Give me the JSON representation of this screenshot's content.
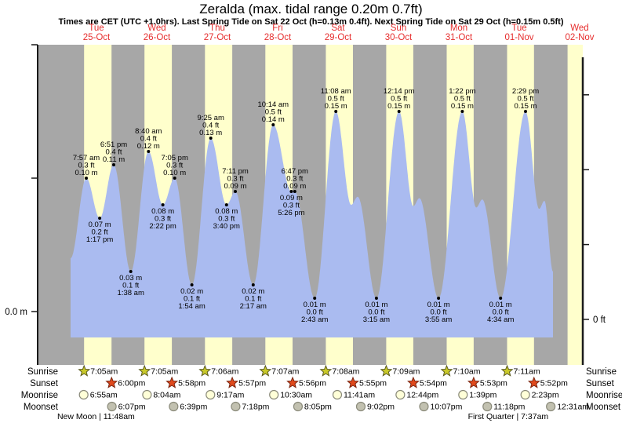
{
  "title": "Zeralda (max. tidal range 0.20m 0.7ft)",
  "subtitle": "Times are CET (UTC +1.0hrs). Last Spring Tide on Sat 22 Oct (h=0.13m 0.4ft). Next Spring Tide on Sat 29 Oct (h=0.15m 0.5ft)",
  "row_labels": {
    "sunrise": "Sunrise",
    "sunset": "Sunset",
    "moonrise": "Moonrise",
    "moonset": "Moonset"
  },
  "axis_labels": {
    "left_zero": "0.0 m",
    "right_zero": "0 ft"
  },
  "days": [
    {
      "name": "Tue",
      "date": "25-Oct"
    },
    {
      "name": "Wed",
      "date": "26-Oct"
    },
    {
      "name": "Thu",
      "date": "27-Oct"
    },
    {
      "name": "Fri",
      "date": "28-Oct"
    },
    {
      "name": "Sat",
      "date": "29-Oct"
    },
    {
      "name": "Sun",
      "date": "30-Oct"
    },
    {
      "name": "Mon",
      "date": "31-Oct"
    },
    {
      "name": "Tue",
      "date": "01-Nov"
    },
    {
      "name": "Wed",
      "date": "02-Nov"
    }
  ],
  "colors": {
    "night": "#a7a7a7",
    "day": "#ffffcc",
    "tide_fill": "#aabbf0",
    "axis": "#1a1a1a",
    "day_label": "#e62d2d",
    "annotation": "#000000",
    "sunrise_star_fill": "#c9c929",
    "sunrise_star_stroke": "#5a5a20",
    "sunset_star_fill": "#e0491c",
    "sunset_star_stroke": "#7a2510",
    "moonrise_fill": "#ffffd8",
    "moonrise_stroke": "#8a8a7a",
    "moonset_fill": "#c2c1b0",
    "moonset_stroke": "#8a8a7a"
  },
  "chart_data": {
    "type": "area",
    "title": "Zeralda (max. tidal range 0.20m 0.7ft)",
    "x_unit": "hours from 00:00 Tue 25-Oct",
    "y_left": {
      "unit": "m",
      "min": 0.0,
      "max": 0.2,
      "tick_step": 0.1,
      "zero_label": "0.0 m"
    },
    "y_right": {
      "unit": "ft",
      "min": 0.0,
      "max": 0.7,
      "tick_step": 0.2,
      "zero_label": "0 ft"
    },
    "grid": false,
    "tide_events": [
      {
        "type": "high",
        "time": "7:57 am",
        "t": 7.95,
        "m": 0.1,
        "ft": 0.3,
        "m_label": "0.10 m",
        "ft_label": "0.3 ft"
      },
      {
        "type": "low",
        "time": "1:17 pm",
        "t": 13.283,
        "m": 0.07,
        "ft": 0.2,
        "m_label": "0.07 m",
        "ft_label": "0.2 ft"
      },
      {
        "type": "high",
        "time": "6:51 pm",
        "t": 18.85,
        "m": 0.11,
        "ft": 0.4,
        "m_label": "0.11 m",
        "ft_label": "0.4 ft"
      },
      {
        "type": "low",
        "time": "1:38 am",
        "t": 25.633,
        "m": 0.03,
        "ft": 0.1,
        "m_label": "0.03 m",
        "ft_label": "0.1 ft"
      },
      {
        "type": "high",
        "time": "8:40 am",
        "t": 32.667,
        "m": 0.12,
        "ft": 0.4,
        "m_label": "0.12 m",
        "ft_label": "0.4 ft"
      },
      {
        "type": "low",
        "time": "2:22 pm",
        "t": 38.367,
        "m": 0.08,
        "ft": 0.3,
        "m_label": "0.08 m",
        "ft_label": "0.3 ft"
      },
      {
        "type": "high",
        "time": "7:05 pm",
        "t": 43.083,
        "m": 0.1,
        "ft": 0.3,
        "m_label": "0.10 m",
        "ft_label": "0.3 ft"
      },
      {
        "type": "low",
        "time": "1:54 am",
        "t": 49.9,
        "m": 0.02,
        "ft": 0.1,
        "m_label": "0.02 m",
        "ft_label": "0.1 ft"
      },
      {
        "type": "high",
        "time": "9:25 am",
        "t": 57.417,
        "m": 0.13,
        "ft": 0.4,
        "m_label": "0.13 m",
        "ft_label": "0.4 ft"
      },
      {
        "type": "low",
        "time": "3:40 pm",
        "t": 63.667,
        "m": 0.08,
        "ft": 0.3,
        "m_label": "0.08 m",
        "ft_label": "0.3 ft"
      },
      {
        "type": "high",
        "time": "7:11 pm",
        "t": 67.183,
        "m": 0.09,
        "ft": 0.3,
        "m_label": "0.09 m",
        "ft_label": "0.3 ft"
      },
      {
        "type": "low",
        "time": "2:17 am",
        "t": 74.283,
        "m": 0.02,
        "ft": 0.1,
        "m_label": "0.02 m",
        "ft_label": "0.1 ft"
      },
      {
        "type": "high",
        "time": "10:14 am",
        "t": 82.233,
        "m": 0.14,
        "ft": 0.5,
        "m_label": "0.14 m",
        "ft_label": "0.5 ft"
      },
      {
        "type": "low",
        "time": "5:26 pm",
        "t": 89.433,
        "m": 0.09,
        "ft": 0.3,
        "m_label": "0.09 m",
        "ft_label": "0.3 ft"
      },
      {
        "type": "high",
        "time": "6:47 pm",
        "t": 90.783,
        "m": 0.09,
        "ft": 0.3,
        "m_label": "0.09 m",
        "ft_label": "0.3 ft"
      },
      {
        "type": "low",
        "time": "2:43 am",
        "t": 98.717,
        "m": 0.01,
        "ft": 0.0,
        "m_label": "0.01 m",
        "ft_label": "0.0 ft"
      },
      {
        "type": "high",
        "time": "11:08 am",
        "t": 107.133,
        "m": 0.15,
        "ft": 0.5,
        "m_label": "0.15 m",
        "ft_label": "0.5 ft"
      },
      {
        "type": "low",
        "time": "3:15 am",
        "t": 123.25,
        "m": 0.01,
        "ft": 0.0,
        "m_label": "0.01 m",
        "ft_label": "0.0 ft"
      },
      {
        "type": "high",
        "time": "12:14 pm",
        "t": 132.233,
        "m": 0.15,
        "ft": 0.5,
        "m_label": "0.15 m",
        "ft_label": "0.5 ft"
      },
      {
        "type": "low",
        "time": "3:55 am",
        "t": 147.917,
        "m": 0.01,
        "ft": 0.0,
        "m_label": "0.01 m",
        "ft_label": "0.0 ft"
      },
      {
        "type": "high",
        "time": "1:22 pm",
        "t": 157.367,
        "m": 0.15,
        "ft": 0.5,
        "m_label": "0.15 m",
        "ft_label": "0.5 ft"
      },
      {
        "type": "low",
        "time": "4:34 am",
        "t": 172.567,
        "m": 0.01,
        "ft": 0.0,
        "m_label": "0.01 m",
        "ft_label": "0.0 ft"
      },
      {
        "type": "high",
        "time": "2:29 pm",
        "t": 182.483,
        "m": 0.15,
        "ft": 0.5,
        "m_label": "0.15 m",
        "ft_label": "0.5 ft"
      }
    ],
    "curve_endpoints": {
      "start": {
        "t": 1.7,
        "m": 0.04
      },
      "end": {
        "t": 193.4,
        "m": 0.03
      }
    },
    "curve_shoulders": [
      [
        113.2,
        0.08
      ],
      [
        115.8,
        0.086
      ],
      [
        137.9,
        0.079
      ],
      [
        140.3,
        0.085
      ],
      [
        162.9,
        0.078
      ],
      [
        165.3,
        0.084
      ],
      [
        187.9,
        0.077
      ],
      [
        190.0,
        0.083
      ]
    ],
    "daylight_spans": [
      [
        7.083,
        18.0
      ],
      [
        31.083,
        41.967
      ],
      [
        55.1,
        65.95
      ],
      [
        79.117,
        89.933
      ],
      [
        103.133,
        113.917
      ],
      [
        127.15,
        137.9
      ],
      [
        151.167,
        161.883
      ],
      [
        175.183,
        185.867
      ],
      [
        199.2,
        210.0
      ]
    ]
  },
  "sun_moon": {
    "sunrise": [
      {
        "time": "7:05am",
        "t": 7.083
      },
      {
        "time": "7:05am",
        "t": 31.083
      },
      {
        "time": "7:06am",
        "t": 55.1
      },
      {
        "time": "7:07am",
        "t": 79.117
      },
      {
        "time": "7:08am",
        "t": 103.133
      },
      {
        "time": "7:09am",
        "t": 127.15
      },
      {
        "time": "7:10am",
        "t": 151.167
      },
      {
        "time": "7:11am",
        "t": 175.183
      }
    ],
    "sunset": [
      {
        "time": "6:00pm",
        "t": 18.0
      },
      {
        "time": "5:58pm",
        "t": 41.967
      },
      {
        "time": "5:57pm",
        "t": 65.95
      },
      {
        "time": "5:56pm",
        "t": 89.933
      },
      {
        "time": "5:55pm",
        "t": 113.917
      },
      {
        "time": "5:54pm",
        "t": 137.9
      },
      {
        "time": "5:53pm",
        "t": 161.883
      },
      {
        "time": "5:52pm",
        "t": 185.867
      }
    ],
    "moonrise": [
      {
        "time": "6:55am",
        "t": 6.917
      },
      {
        "time": "8:04am",
        "t": 32.067
      },
      {
        "time": "9:17am",
        "t": 57.283
      },
      {
        "time": "10:30am",
        "t": 82.5
      },
      {
        "time": "11:41am",
        "t": 107.683
      },
      {
        "time": "12:44pm",
        "t": 132.733
      },
      {
        "time": "1:39pm",
        "t": 157.65
      },
      {
        "time": "2:23pm",
        "t": 182.383
      }
    ],
    "moonset": [
      {
        "time": "6:07pm",
        "t": 18.117
      },
      {
        "time": "6:39pm",
        "t": 42.65
      },
      {
        "time": "7:18pm",
        "t": 67.3
      },
      {
        "time": "8:05pm",
        "t": 92.083
      },
      {
        "time": "9:02pm",
        "t": 117.033
      },
      {
        "time": "10:07pm",
        "t": 142.117
      },
      {
        "time": "11:18pm",
        "t": 167.3
      },
      {
        "time": "12:31am",
        "t": 192.517
      }
    ]
  },
  "moon_phases": [
    {
      "label": "New Moon | 11:48am",
      "t": 11.8
    },
    {
      "label": "First Quarter | 7:37am",
      "t": 175.617
    }
  ]
}
